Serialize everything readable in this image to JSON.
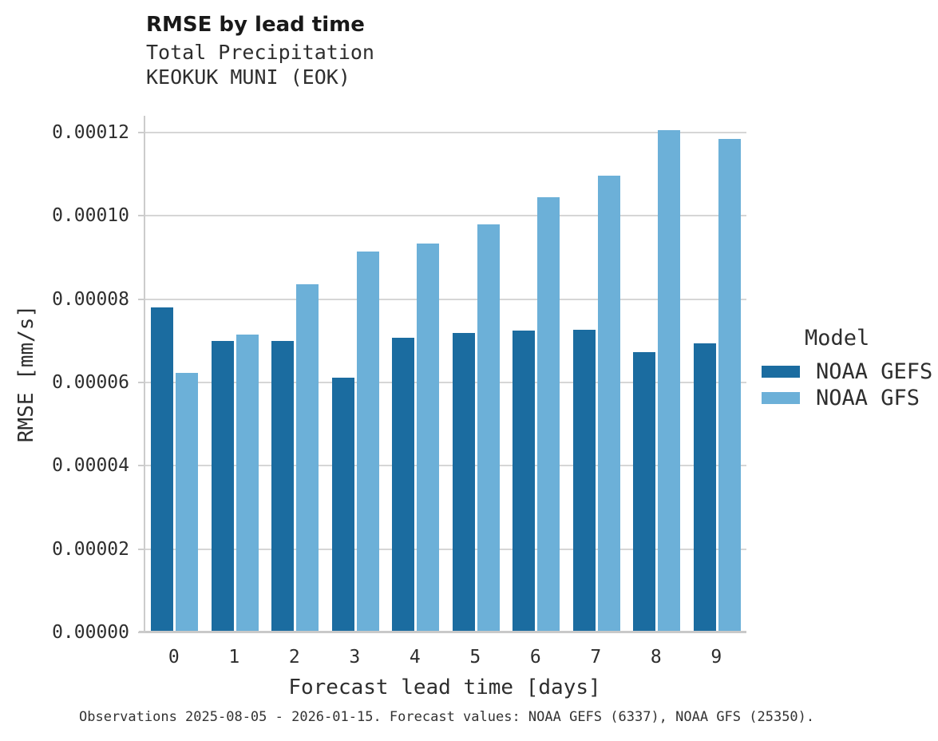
{
  "header": {
    "title": "RMSE by lead time",
    "subtitle_line1": "Total Precipitation",
    "subtitle_line2": "KEOKUK MUNI (EOK)"
  },
  "legend": {
    "title": "Model",
    "position": "right"
  },
  "footer": {
    "caption": "Observations 2025-08-05 - 2026-01-15. Forecast values: NOAA GEFS (6337), NOAA GFS (25350)."
  },
  "colors": {
    "gefs_dark_blue": "#1b6ca0",
    "gfs_light_blue": "#6cb0d8",
    "gridline_gray": "#d6d6d6",
    "axis_gray": "#c9c9c9",
    "text_dark": "#2e2e2e"
  },
  "chart_data": {
    "type": "bar",
    "title": "RMSE by lead time",
    "subtitle": "Total Precipitation — KEOKUK MUNI (EOK)",
    "xlabel": "Forecast lead time [days]",
    "ylabel": "RMSE [mm/s]",
    "categories": [
      "0",
      "1",
      "2",
      "3",
      "4",
      "5",
      "6",
      "7",
      "8",
      "9"
    ],
    "series": [
      {
        "name": "NOAA GEFS",
        "color": "#1b6ca0",
        "values": [
          7.8e-05,
          7e-05,
          6.99e-05,
          6.11e-05,
          7.07e-05,
          7.19e-05,
          7.24e-05,
          7.27e-05,
          6.73e-05,
          6.94e-05
        ]
      },
      {
        "name": "NOAA GFS",
        "color": "#6cb0d8",
        "values": [
          6.23e-05,
          7.15e-05,
          8.36e-05,
          9.14e-05,
          9.34e-05,
          9.79e-05,
          0.0001044,
          0.0001096,
          0.0001205,
          0.0001185
        ]
      }
    ],
    "ylim": [
      0,
      0.000124
    ],
    "yticks": [
      {
        "value": 0.0,
        "label": "0.00000"
      },
      {
        "value": 2e-05,
        "label": "0.00002"
      },
      {
        "value": 4e-05,
        "label": "0.00004"
      },
      {
        "value": 6e-05,
        "label": "0.00006"
      },
      {
        "value": 8e-05,
        "label": "0.00008"
      },
      {
        "value": 0.0001,
        "label": "0.00010"
      },
      {
        "value": 0.00012,
        "label": "0.00012"
      }
    ],
    "grid": true,
    "legend_position": "right"
  }
}
